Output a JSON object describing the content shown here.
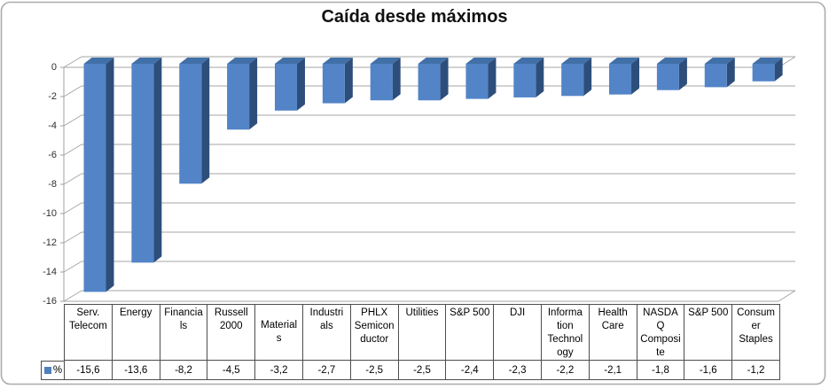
{
  "chart_data": {
    "type": "bar",
    "style": "3d-column",
    "title": "Caída desde máximos",
    "legend": "%",
    "legend_position": "data-table",
    "grid": true,
    "ylim": [
      -16,
      0
    ],
    "ytick_labels": [
      "0",
      "-2",
      "-4",
      "-6",
      "-8",
      "-10",
      "-12",
      "-14",
      "-16"
    ],
    "categories": [
      "Serv. Telecom",
      "Energy",
      "Financials",
      "Russell 2000",
      "Materials",
      "Industrials",
      "PHLX Semiconductor",
      "Utilities",
      "S&P 500",
      "DJI",
      "Information Technology",
      "Health Care",
      "NASDAQ Composite",
      "S&P 500",
      "Consumer Staples"
    ],
    "series": [
      {
        "name": "%",
        "values": [
          -15.6,
          -13.6,
          -8.2,
          -4.5,
          -3.2,
          -2.7,
          -2.5,
          -2.5,
          -2.4,
          -2.3,
          -2.2,
          -2.1,
          -1.8,
          -1.6,
          -1.2
        ]
      }
    ]
  },
  "table": {
    "legend_label": "%",
    "columns": [
      {
        "lines": [
          "Serv.",
          "Telecom"
        ],
        "valign": "top",
        "value": "-15,6"
      },
      {
        "lines": [
          "Energy"
        ],
        "valign": "top",
        "value": "-13,6"
      },
      {
        "lines": [
          "Financia",
          "ls"
        ],
        "valign": "top",
        "value": "-8,2"
      },
      {
        "lines": [
          "Russell",
          "2000"
        ],
        "valign": "top",
        "value": "-4,5"
      },
      {
        "lines": [
          "Material",
          "s"
        ],
        "valign": "middle",
        "value": "-3,2"
      },
      {
        "lines": [
          "Industri",
          "als"
        ],
        "valign": "top",
        "value": "-2,7"
      },
      {
        "lines": [
          "PHLX",
          "Semicon",
          "ductor"
        ],
        "valign": "top",
        "value": "-2,5"
      },
      {
        "lines": [
          "Utilities"
        ],
        "valign": "top",
        "value": "-2,5"
      },
      {
        "lines": [
          "S&P 500"
        ],
        "valign": "top",
        "value": "-2,4"
      },
      {
        "lines": [
          "DJI"
        ],
        "valign": "top",
        "value": "-2,3"
      },
      {
        "lines": [
          "Informa",
          "tion",
          "Technol",
          "ogy"
        ],
        "valign": "top",
        "value": "-2,2"
      },
      {
        "lines": [
          "Health",
          "Care"
        ],
        "valign": "top",
        "value": "-2,1"
      },
      {
        "lines": [
          "NASDA",
          "Q",
          "Composi",
          "te"
        ],
        "valign": "top",
        "value": "-1,8"
      },
      {
        "lines": [
          "S&P 500"
        ],
        "valign": "top",
        "value": "-1,6"
      },
      {
        "lines": [
          "Consum",
          "er",
          "Staples"
        ],
        "valign": "top",
        "value": "-1,2"
      }
    ]
  },
  "colors": {
    "bar_front": "#5284C7",
    "bar_side": "#2D4E7B",
    "bar_top": "#4170A8",
    "legend_swatch": "#4F81BD",
    "gridline": "#A6A6A6",
    "axis": "#A0A0A0",
    "table_border": "#4D4D4D",
    "chart_border": "#ABABAB",
    "background": "#FFFFFF"
  }
}
